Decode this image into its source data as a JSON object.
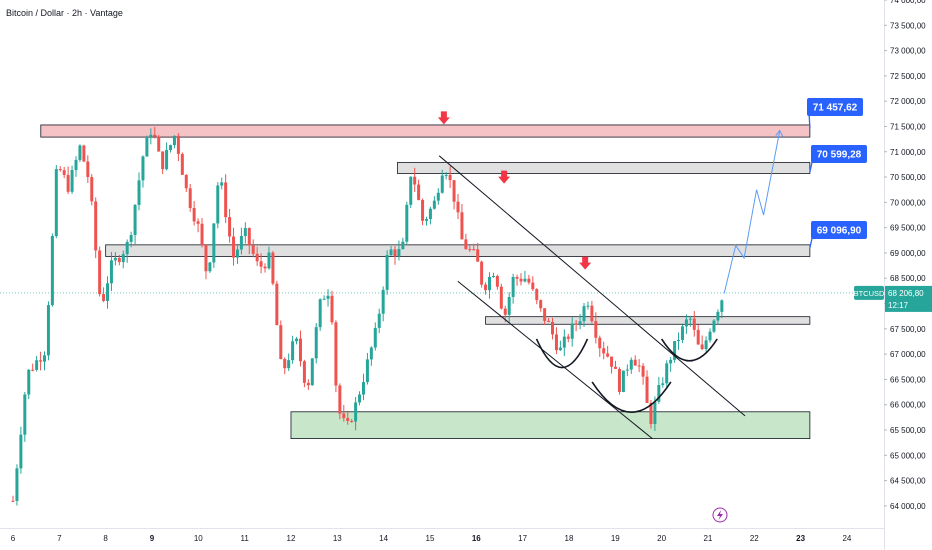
{
  "header": {
    "title": "Bitcoin / Dollar · 2h · Vantage"
  },
  "colors": {
    "up": "#26a69a",
    "down": "#ef5350",
    "resistance_zone_fill": "#f5c2c6",
    "neutral_zone_fill": "#e0e0e0",
    "support_zone_fill": "#c8e6c9",
    "target_label": "#2962ff",
    "arrow": "#f23645",
    "last_price": "#26a69a"
  },
  "chart_data": {
    "type": "candlestick",
    "symbol": "BTCUSD",
    "last_price": "68 206,80",
    "countdown": "12:17",
    "ylim": [
      63800,
      74000
    ],
    "yticks": [
      "64 000,00",
      "64 500,00",
      "65 000,00",
      "65 500,00",
      "66 000,00",
      "66 500,00",
      "67 000,00",
      "67 500,00",
      "68 000,00",
      "68 500,00",
      "69 000,00",
      "69 500,00",
      "70 000,00",
      "70 500,00",
      "71 000,00",
      "71 500,00",
      "72 000,00",
      "72 500,00",
      "73 000,00",
      "73 500,00",
      "74 000,00"
    ],
    "ytick_values": [
      64000,
      64500,
      65000,
      65500,
      66000,
      66500,
      67000,
      67500,
      68000,
      68500,
      69000,
      69500,
      70000,
      70500,
      71000,
      71500,
      72000,
      72500,
      73000,
      73500,
      74000
    ],
    "xlim": [
      6.0,
      24.8
    ],
    "xticks": [
      {
        "label": "6",
        "value": 6.0,
        "bold": false
      },
      {
        "label": "7",
        "value": 7.0,
        "bold": false
      },
      {
        "label": "8",
        "value": 8.0,
        "bold": false
      },
      {
        "label": "9",
        "value": 9.0,
        "bold": true
      },
      {
        "label": "10",
        "value": 10.0,
        "bold": false
      },
      {
        "label": "11",
        "value": 11.0,
        "bold": false
      },
      {
        "label": "12",
        "value": 12.0,
        "bold": false
      },
      {
        "label": "13",
        "value": 13.0,
        "bold": false
      },
      {
        "label": "14",
        "value": 14.0,
        "bold": false
      },
      {
        "label": "15",
        "value": 15.0,
        "bold": false
      },
      {
        "label": "16",
        "value": 16.0,
        "bold": true
      },
      {
        "label": "17",
        "value": 17.0,
        "bold": false
      },
      {
        "label": "18",
        "value": 18.0,
        "bold": false
      },
      {
        "label": "19",
        "value": 19.0,
        "bold": false
      },
      {
        "label": "20",
        "value": 20.0,
        "bold": false
      },
      {
        "label": "21",
        "value": 21.0,
        "bold": false
      },
      {
        "label": "22",
        "value": 22.0,
        "bold": false
      },
      {
        "label": "23",
        "value": 23.0,
        "bold": true
      },
      {
        "label": "24",
        "value": 24.0,
        "bold": false
      }
    ],
    "zones": [
      {
        "name": "resistance",
        "x": [
          6.6,
          23.2
        ],
        "y": [
          71290,
          71530
        ],
        "fill_key": "resistance_zone_fill"
      },
      {
        "name": "upper-range",
        "x": [
          14.3,
          23.2
        ],
        "y": [
          70570,
          70790
        ],
        "fill_key": "neutral_zone_fill"
      },
      {
        "name": "mid-range",
        "x": [
          8.0,
          23.2
        ],
        "y": [
          68930,
          69160
        ],
        "fill_key": "neutral_zone_fill"
      },
      {
        "name": "neckline",
        "x": [
          16.2,
          23.2
        ],
        "y": [
          67590,
          67740
        ],
        "fill_key": "neutral_zone_fill"
      },
      {
        "name": "demand",
        "x": [
          12.0,
          23.2
        ],
        "y": [
          65330,
          65860
        ],
        "fill_key": "support_zone_fill"
      }
    ],
    "trendlines": [
      {
        "x1": 15.2,
        "y1": 70920,
        "x2": 21.8,
        "y2": 65780
      },
      {
        "x1": 15.6,
        "y1": 68440,
        "x2": 19.8,
        "y2": 65330
      }
    ],
    "arcs": [
      {
        "x1": 17.3,
        "x2": 18.4,
        "y_top": 67300,
        "y_bottom": 66450
      },
      {
        "x1": 18.5,
        "x2": 20.2,
        "y_top": 66450,
        "y_bottom": 65550
      },
      {
        "x1": 20.0,
        "x2": 21.2,
        "y_top": 67300,
        "y_bottom": 66650
      }
    ],
    "arrows": [
      {
        "x": 15.3,
        "y": 71620
      },
      {
        "x": 16.6,
        "y": 70450
      },
      {
        "x": 18.35,
        "y": 68750
      }
    ],
    "projection": [
      {
        "x": 21.35,
        "y": 68200
      },
      {
        "x": 21.6,
        "y": 69150
      },
      {
        "x": 21.78,
        "y": 68900
      },
      {
        "x": 22.05,
        "y": 70250
      },
      {
        "x": 22.2,
        "y": 69750
      },
      {
        "x": 22.55,
        "y": 71420
      }
    ],
    "targets": [
      {
        "label": "71 457,62",
        "value": 71457.62,
        "anchor_x": 23.2
      },
      {
        "label": "70 599,28",
        "value": 70599.28,
        "anchor_x": 23.2
      },
      {
        "label": "69 096,90",
        "value": 69096.9,
        "anchor_x": 23.2
      }
    ],
    "path_points": [
      [
        6.0,
        64100
      ],
      [
        6.3,
        66600
      ],
      [
        6.7,
        67100
      ],
      [
        6.95,
        70750
      ],
      [
        7.2,
        70300
      ],
      [
        7.45,
        71100
      ],
      [
        7.65,
        70400
      ],
      [
        7.9,
        67900
      ],
      [
        8.1,
        68700
      ],
      [
        8.5,
        69200
      ],
      [
        8.8,
        70900
      ],
      [
        9.0,
        71500
      ],
      [
        9.2,
        70700
      ],
      [
        9.5,
        71350
      ],
      [
        9.75,
        70200
      ],
      [
        10.0,
        69500
      ],
      [
        10.2,
        68500
      ],
      [
        10.45,
        70600
      ],
      [
        10.75,
        68900
      ],
      [
        11.0,
        69400
      ],
      [
        11.3,
        68700
      ],
      [
        11.55,
        68900
      ],
      [
        11.8,
        66600
      ],
      [
        12.1,
        67300
      ],
      [
        12.35,
        66300
      ],
      [
        12.65,
        68100
      ],
      [
        12.85,
        68300
      ],
      [
        13.0,
        65950
      ],
      [
        13.2,
        65500
      ],
      [
        13.4,
        66000
      ],
      [
        13.6,
        66650
      ],
      [
        13.85,
        67500
      ],
      [
        14.1,
        69050
      ],
      [
        14.4,
        69000
      ],
      [
        14.6,
        70700
      ],
      [
        14.85,
        69600
      ],
      [
        15.1,
        70000
      ],
      [
        15.3,
        70800
      ],
      [
        15.5,
        70200
      ],
      [
        15.7,
        69200
      ],
      [
        16.0,
        68900
      ],
      [
        16.15,
        68300
      ],
      [
        16.4,
        68700
      ],
      [
        16.6,
        67700
      ],
      [
        16.8,
        68500
      ],
      [
        17.1,
        68500
      ],
      [
        17.35,
        67900
      ],
      [
        17.55,
        67600
      ],
      [
        17.8,
        67050
      ],
      [
        18.0,
        67400
      ],
      [
        18.25,
        67750
      ],
      [
        18.4,
        68100
      ],
      [
        18.65,
        67200
      ],
      [
        18.9,
        66900
      ],
      [
        19.1,
        66350
      ],
      [
        19.35,
        67000
      ],
      [
        19.55,
        66700
      ],
      [
        19.75,
        65650
      ],
      [
        19.95,
        66300
      ],
      [
        20.15,
        66850
      ],
      [
        20.35,
        67300
      ],
      [
        20.6,
        67750
      ],
      [
        20.85,
        66950
      ],
      [
        21.05,
        67550
      ],
      [
        21.25,
        68000
      ],
      [
        21.35,
        68210
      ]
    ]
  }
}
